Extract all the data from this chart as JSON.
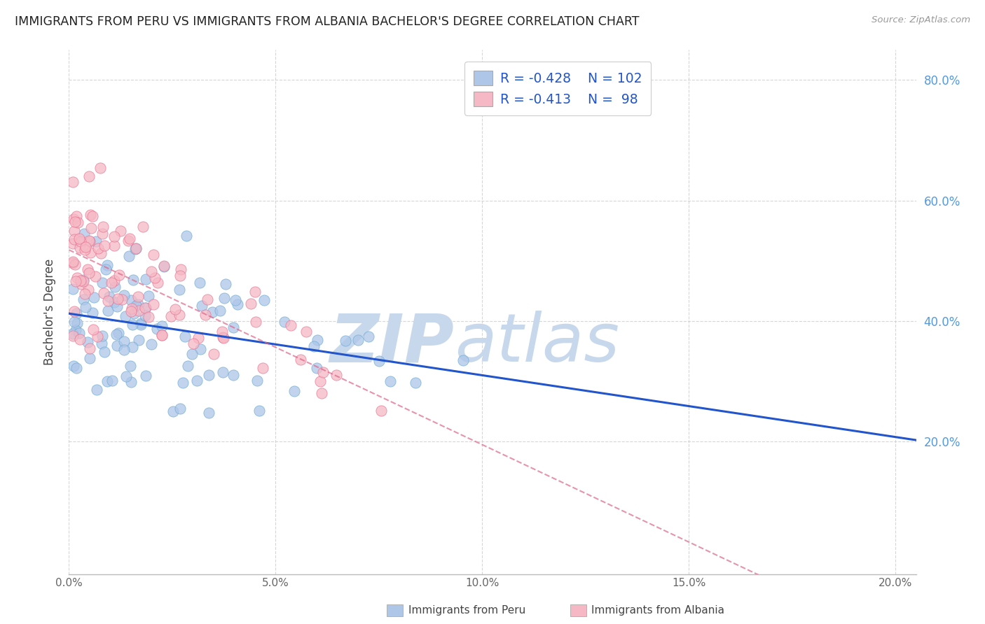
{
  "title": "IMMIGRANTS FROM PERU VS IMMIGRANTS FROM ALBANIA BACHELOR'S DEGREE CORRELATION CHART",
  "source": "Source: ZipAtlas.com",
  "ylabel": "Bachelor's Degree",
  "legend_peru_label": "Immigrants from Peru",
  "legend_albania_label": "Immigrants from Albania",
  "peru_color": "#aec6e8",
  "albania_color": "#f5b8c4",
  "peru_edge_color": "#6aaad4",
  "albania_edge_color": "#e87090",
  "peru_line_color": "#2255cc",
  "albania_line_color": "#dd6688",
  "watermark_zip_color": "#c8d8ec",
  "watermark_atlas_color": "#c8d8ec",
  "grid_color": "#cccccc",
  "right_axis_color": "#5599dd",
  "title_color": "#222222",
  "xlim": [
    0.0,
    0.205
  ],
  "ylim": [
    -0.02,
    0.85
  ],
  "xticks": [
    0.0,
    0.05,
    0.1,
    0.15,
    0.2
  ],
  "xtick_labels": [
    "0.0%",
    "5.0%",
    "10.0%",
    "15.0%",
    "20.0%"
  ],
  "yticks_right": [
    0.2,
    0.4,
    0.6,
    0.8
  ],
  "ytick_right_labels": [
    "20.0%",
    "40.0%",
    "60.0%",
    "80.0%"
  ],
  "legend_box_color": "#2255cc",
  "peru_R": "-0.428",
  "peru_N": "102",
  "albania_R": "-0.413",
  "albania_N": "98"
}
